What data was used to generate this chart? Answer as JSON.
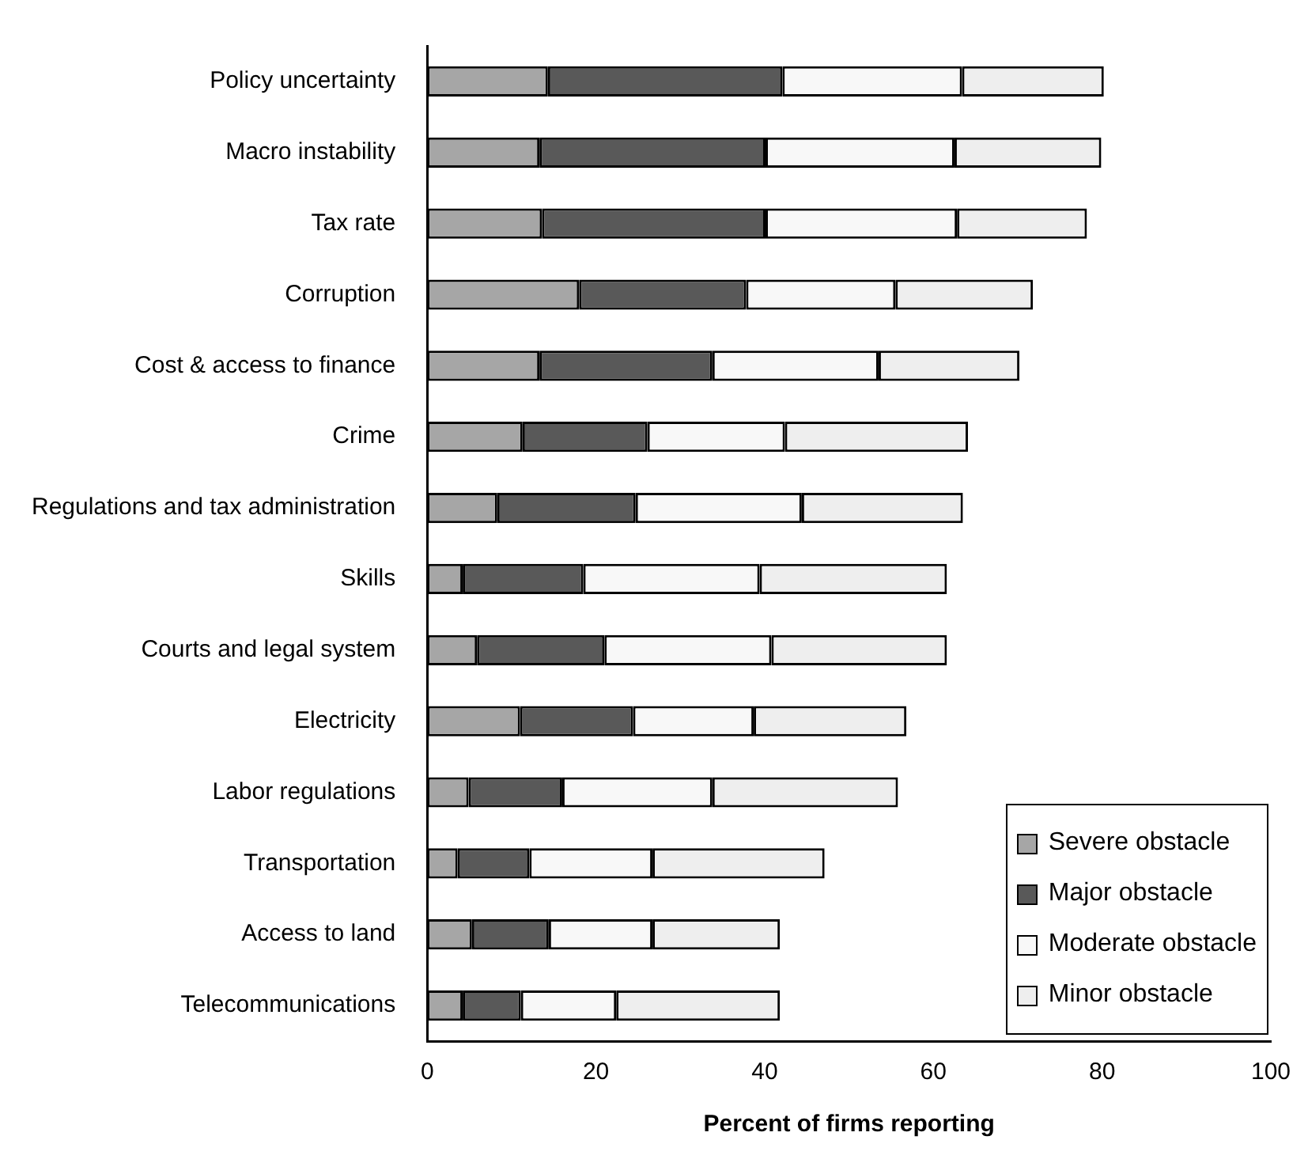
{
  "chart_data": {
    "type": "bar",
    "orientation": "horizontal",
    "stacked": true,
    "xlabel": "Percent of firms reporting",
    "categories": [
      "Policy uncertainty",
      "Macro instability",
      "Tax rate",
      "Corruption",
      "Cost & access to finance",
      "Crime",
      "Regulations and tax administration",
      "Skills",
      "Courts and legal system",
      "Electricity",
      "Labor regulations",
      "Transportation",
      "Access to land",
      "Telecommunications"
    ],
    "series": [
      {
        "name": "Severe obstacle",
        "color": "#a6a6a6",
        "values": [
          14.3,
          13.3,
          13.6,
          18.0,
          13.3,
          11.3,
          8.3,
          4.2,
          5.9,
          11.0,
          4.9,
          3.6,
          5.3,
          4.2
        ]
      },
      {
        "name": "Major obstacle",
        "color": "#595959",
        "values": [
          27.8,
          26.8,
          26.5,
          19.8,
          20.5,
          14.8,
          16.4,
          14.3,
          15.1,
          13.4,
          11.1,
          8.5,
          9.1,
          6.9
        ]
      },
      {
        "name": "Moderate obstacle",
        "color": "#f8f8f8",
        "values": [
          21.3,
          22.4,
          22.7,
          17.7,
          19.7,
          16.3,
          19.7,
          20.9,
          19.8,
          14.3,
          17.8,
          14.6,
          12.3,
          11.3
        ]
      },
      {
        "name": "Minor obstacle",
        "color": "#eeeeee",
        "values": [
          16.8,
          17.4,
          15.4,
          16.3,
          16.7,
          21.7,
          19.1,
          22.2,
          20.8,
          18.1,
          22.0,
          20.4,
          15.1,
          19.4
        ]
      }
    ],
    "xlim": [
      0,
      100
    ],
    "xticks": [
      0,
      20,
      40,
      60,
      80,
      100
    ],
    "grid": false,
    "legend": "bottom right"
  }
}
